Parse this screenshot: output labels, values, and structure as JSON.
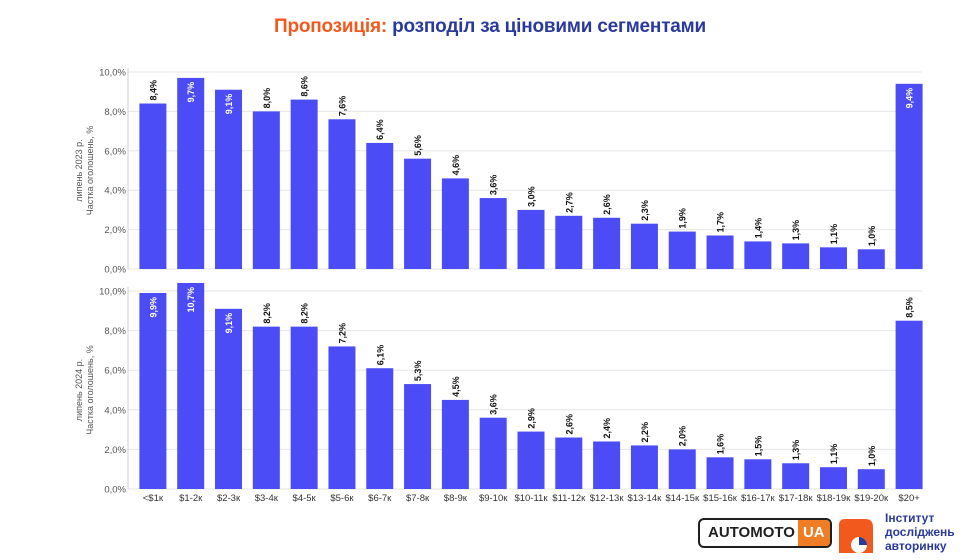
{
  "title": {
    "accent": "Пропозиція:",
    "rest": "розподіл за ціновими сегментами"
  },
  "chart_data": [
    {
      "type": "bar",
      "ylabel": [
        "липень 2023 р.",
        "Частка оголошень, %"
      ],
      "yticks": [
        "0,0%",
        "2,0%",
        "4,0%",
        "6,0%",
        "8,0%",
        "10,0%"
      ],
      "ylim": [
        0,
        10.0
      ],
      "categories": [
        "<$1к",
        "$1-2к",
        "$2-3к",
        "$3-4к",
        "$4-5к",
        "$5-6к",
        "$6-7к",
        "$7-8к",
        "$8-9к",
        "$9-10к",
        "$10-11к",
        "$11-12к",
        "$12-13к",
        "$13-14к",
        "$14-15к",
        "$15-16к",
        "$16-17к",
        "$17-18к",
        "$18-19к",
        "$19-20к",
        "$20+"
      ],
      "values": [
        8.4,
        9.7,
        9.1,
        8.0,
        8.6,
        7.6,
        6.4,
        5.6,
        4.6,
        3.6,
        3.0,
        2.7,
        2.6,
        2.3,
        1.9,
        1.7,
        1.4,
        1.3,
        1.1,
        1.0,
        9.4
      ],
      "value_labels": [
        "8,4%",
        "9,7%",
        "9,1%",
        "8,0%",
        "8,6%",
        "7,6%",
        "6,4%",
        "5,6%",
        "4,6%",
        "3,6%",
        "3,0%",
        "2,7%",
        "2,6%",
        "2,3%",
        "1,9%",
        "1,7%",
        "1,4%",
        "1,3%",
        "1,1%",
        "1,0%",
        "9,4%"
      ],
      "color": "#4b4cf5"
    },
    {
      "type": "bar",
      "ylabel": [
        "липень 2024 р.",
        "Частка оголошень, %"
      ],
      "yticks": [
        "0,0%",
        "2,0%",
        "4,0%",
        "6,0%",
        "8,0%",
        "10,0%"
      ],
      "ylim": [
        0,
        10.0
      ],
      "categories": [
        "<$1к",
        "$1-2к",
        "$2-3к",
        "$3-4к",
        "$4-5к",
        "$5-6к",
        "$6-7к",
        "$7-8к",
        "$8-9к",
        "$9-10к",
        "$10-11к",
        "$11-12к",
        "$12-13к",
        "$13-14к",
        "$14-15к",
        "$15-16к",
        "$16-17к",
        "$17-18к",
        "$18-19к",
        "$19-20к",
        "$20+"
      ],
      "values": [
        9.9,
        10.7,
        9.1,
        8.2,
        8.2,
        7.2,
        6.1,
        5.3,
        4.5,
        3.6,
        2.9,
        2.6,
        2.4,
        2.2,
        2.0,
        1.6,
        1.5,
        1.3,
        1.1,
        1.0,
        8.5
      ],
      "value_labels": [
        "9,9%",
        "10,7%",
        "9,1%",
        "8,2%",
        "8,2%",
        "7,2%",
        "6,1%",
        "5,3%",
        "4,5%",
        "3,6%",
        "2,9%",
        "2,6%",
        "2,4%",
        "2,2%",
        "2,0%",
        "1,6%",
        "1,5%",
        "1,3%",
        "1,1%",
        "1,0%",
        "8,5%"
      ],
      "color": "#4b4cf5"
    }
  ],
  "logos": {
    "automoto_main": "AUTOMOTO",
    "automoto_ua": "UA",
    "institute_lines": [
      "Інститут",
      "досліджень",
      "авторинку"
    ]
  }
}
